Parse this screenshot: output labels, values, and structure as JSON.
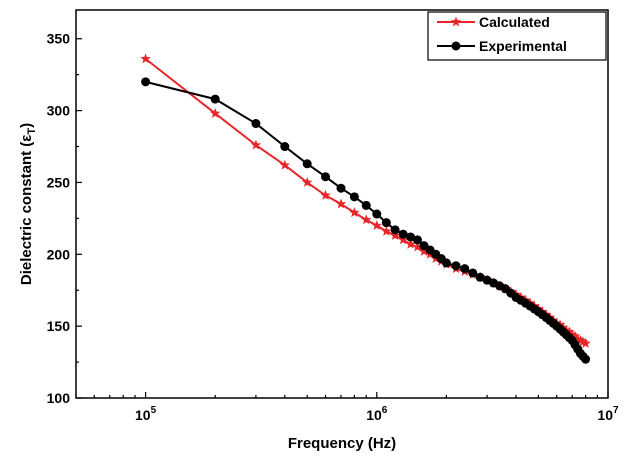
{
  "chart_data": {
    "type": "line",
    "xscale": "log",
    "xlim": [
      50000,
      10000000
    ],
    "ylim": [
      100,
      370
    ],
    "x_ticks": [
      {
        "base": "10",
        "exp": "5",
        "value": 100000
      },
      {
        "base": "10",
        "exp": "6",
        "value": 1000000
      },
      {
        "base": "10",
        "exp": "7",
        "value": 10000000
      }
    ],
    "y_ticks": [
      "100",
      "150",
      "200",
      "250",
      "300",
      "350"
    ],
    "xlabel": "Frequency (Hz)",
    "ylabel": {
      "main": "Dielectric constant (ε",
      "sub": "T",
      "close": ")"
    },
    "legend_position": "top-right",
    "grid": false,
    "series": [
      {
        "name": "Calculated",
        "color": "#e8262a",
        "marker": "star",
        "x": [
          100000,
          200000,
          300000,
          400000,
          500000,
          600000,
          700000,
          800000,
          900000,
          1000000,
          1100000,
          1200000,
          1300000,
          1400000,
          1500000,
          1600000,
          1700000,
          1800000,
          1900000,
          2000000,
          2200000,
          2400000,
          2600000,
          2800000,
          3000000,
          3200000,
          3400000,
          3600000,
          3800000,
          4000000,
          4200000,
          4400000,
          4600000,
          4800000,
          5000000,
          5200000,
          5400000,
          5600000,
          5800000,
          6000000,
          6200000,
          6400000,
          6600000,
          6800000,
          7000000,
          7200000,
          7400000,
          7600000,
          7800000,
          8000000
        ],
        "values": [
          336,
          298,
          276,
          262,
          250,
          241,
          235,
          229,
          224,
          220,
          216,
          213,
          210,
          207,
          205,
          202,
          200,
          197,
          195,
          193,
          190,
          188,
          186,
          184,
          182,
          180,
          178,
          176,
          174,
          172,
          170,
          168,
          166,
          164,
          162,
          160,
          158,
          156,
          154,
          152,
          151,
          149,
          147,
          146,
          144,
          143,
          141,
          140,
          139,
          138
        ]
      },
      {
        "name": "Experimental",
        "color": "#000000",
        "marker": "circle",
        "x": [
          100000,
          200000,
          300000,
          400000,
          500000,
          600000,
          700000,
          800000,
          900000,
          1000000,
          1100000,
          1200000,
          1300000,
          1400000,
          1500000,
          1600000,
          1700000,
          1800000,
          1900000,
          2000000,
          2200000,
          2400000,
          2600000,
          2800000,
          3000000,
          3200000,
          3400000,
          3600000,
          3800000,
          4000000,
          4200000,
          4400000,
          4600000,
          4800000,
          5000000,
          5200000,
          5400000,
          5600000,
          5800000,
          6000000,
          6200000,
          6400000,
          6600000,
          6800000,
          7000000,
          7200000,
          7400000,
          7600000,
          7800000,
          8000000
        ],
        "values": [
          320,
          308,
          291,
          275,
          263,
          254,
          246,
          240,
          234,
          228,
          222,
          217,
          214,
          212,
          210,
          206,
          203,
          200,
          197,
          194,
          192,
          190,
          187,
          184,
          182,
          180,
          178,
          176,
          173,
          170,
          168,
          166,
          164,
          162,
          160,
          158,
          156,
          154,
          152,
          150,
          148,
          146,
          144,
          142,
          140,
          137,
          134,
          131,
          129,
          127
        ]
      }
    ]
  }
}
